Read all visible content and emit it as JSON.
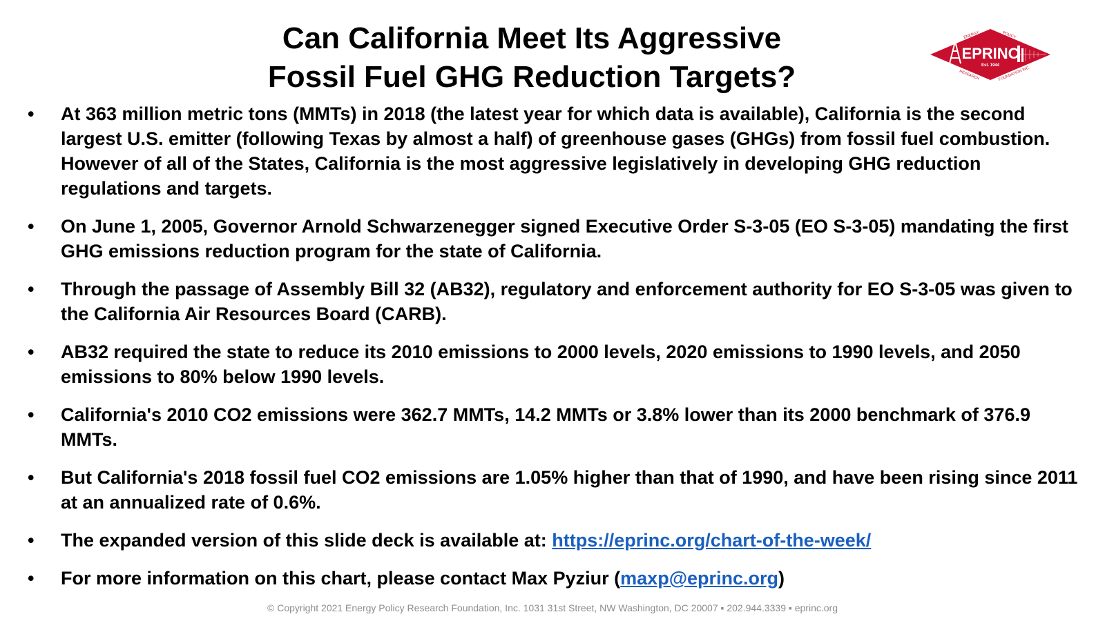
{
  "slide": {
    "title_line1": "Can California Meet Its Aggressive",
    "title_line2": "Fossil Fuel GHG Reduction Targets?"
  },
  "logo": {
    "name": "EPRINC",
    "est": "Est. 1944",
    "arc_top_left": "ENERGY",
    "arc_top_right": "POLICY",
    "arc_bottom_left": "RESEARCH",
    "arc_bottom_right": "FOUNDATION INC.",
    "color": "#c8102e"
  },
  "bullets": [
    {
      "text": "At 363 million metric tons (MMTs) in 2018 (the latest year for which data is available), California is the second largest U.S. emitter (following Texas by almost a half) of greenhouse gases (GHGs) from fossil fuel combustion. However of all of the States, California is the most aggressive legislatively in developing GHG reduction regulations and targets."
    },
    {
      "text": "On June 1, 2005, Governor Arnold Schwarzenegger signed Executive Order S-3-05 (EO S-3-05) mandating the first GHG emissions reduction program for the state of California."
    },
    {
      "text": "Through the passage of Assembly Bill 32 (AB32), regulatory and enforcement authority for EO S-3-05 was given to the California Air Resources Board (CARB)."
    },
    {
      "text": "AB32 required the state to reduce its 2010 emissions to 2000 levels, 2020 emissions to 1990 levels, and 2050 emissions to 80% below 1990 levels."
    },
    {
      "text": "California's 2010 CO2 emissions were 362.7 MMTs, 14.2 MMTs or 3.8% lower than its 2000 benchmark of 376.9 MMTs."
    },
    {
      "text": "But California's 2018 fossil fuel CO2 emissions are 1.05% higher than that of 1990, and have been rising since 2011 at an annualized rate of 0.6%."
    },
    {
      "prefix": "The expanded version of this slide deck is available at: ",
      "link": "https://eprinc.org/chart-of-the-week/"
    },
    {
      "prefix": "For more information on this chart, please contact Max Pyziur (",
      "link": "maxp@eprinc.org",
      "suffix": ")"
    }
  ],
  "bullet_symbol": "•",
  "footer": "© Copyright 2021 Energy Policy Research Foundation, Inc. 1031 31st Street, NW Washington, DC 20007 ▪ 202.944.3339 ▪ eprinc.org",
  "colors": {
    "link": "#1a5fc0",
    "footer": "#8c8c8c",
    "logo_red": "#c8102e"
  }
}
